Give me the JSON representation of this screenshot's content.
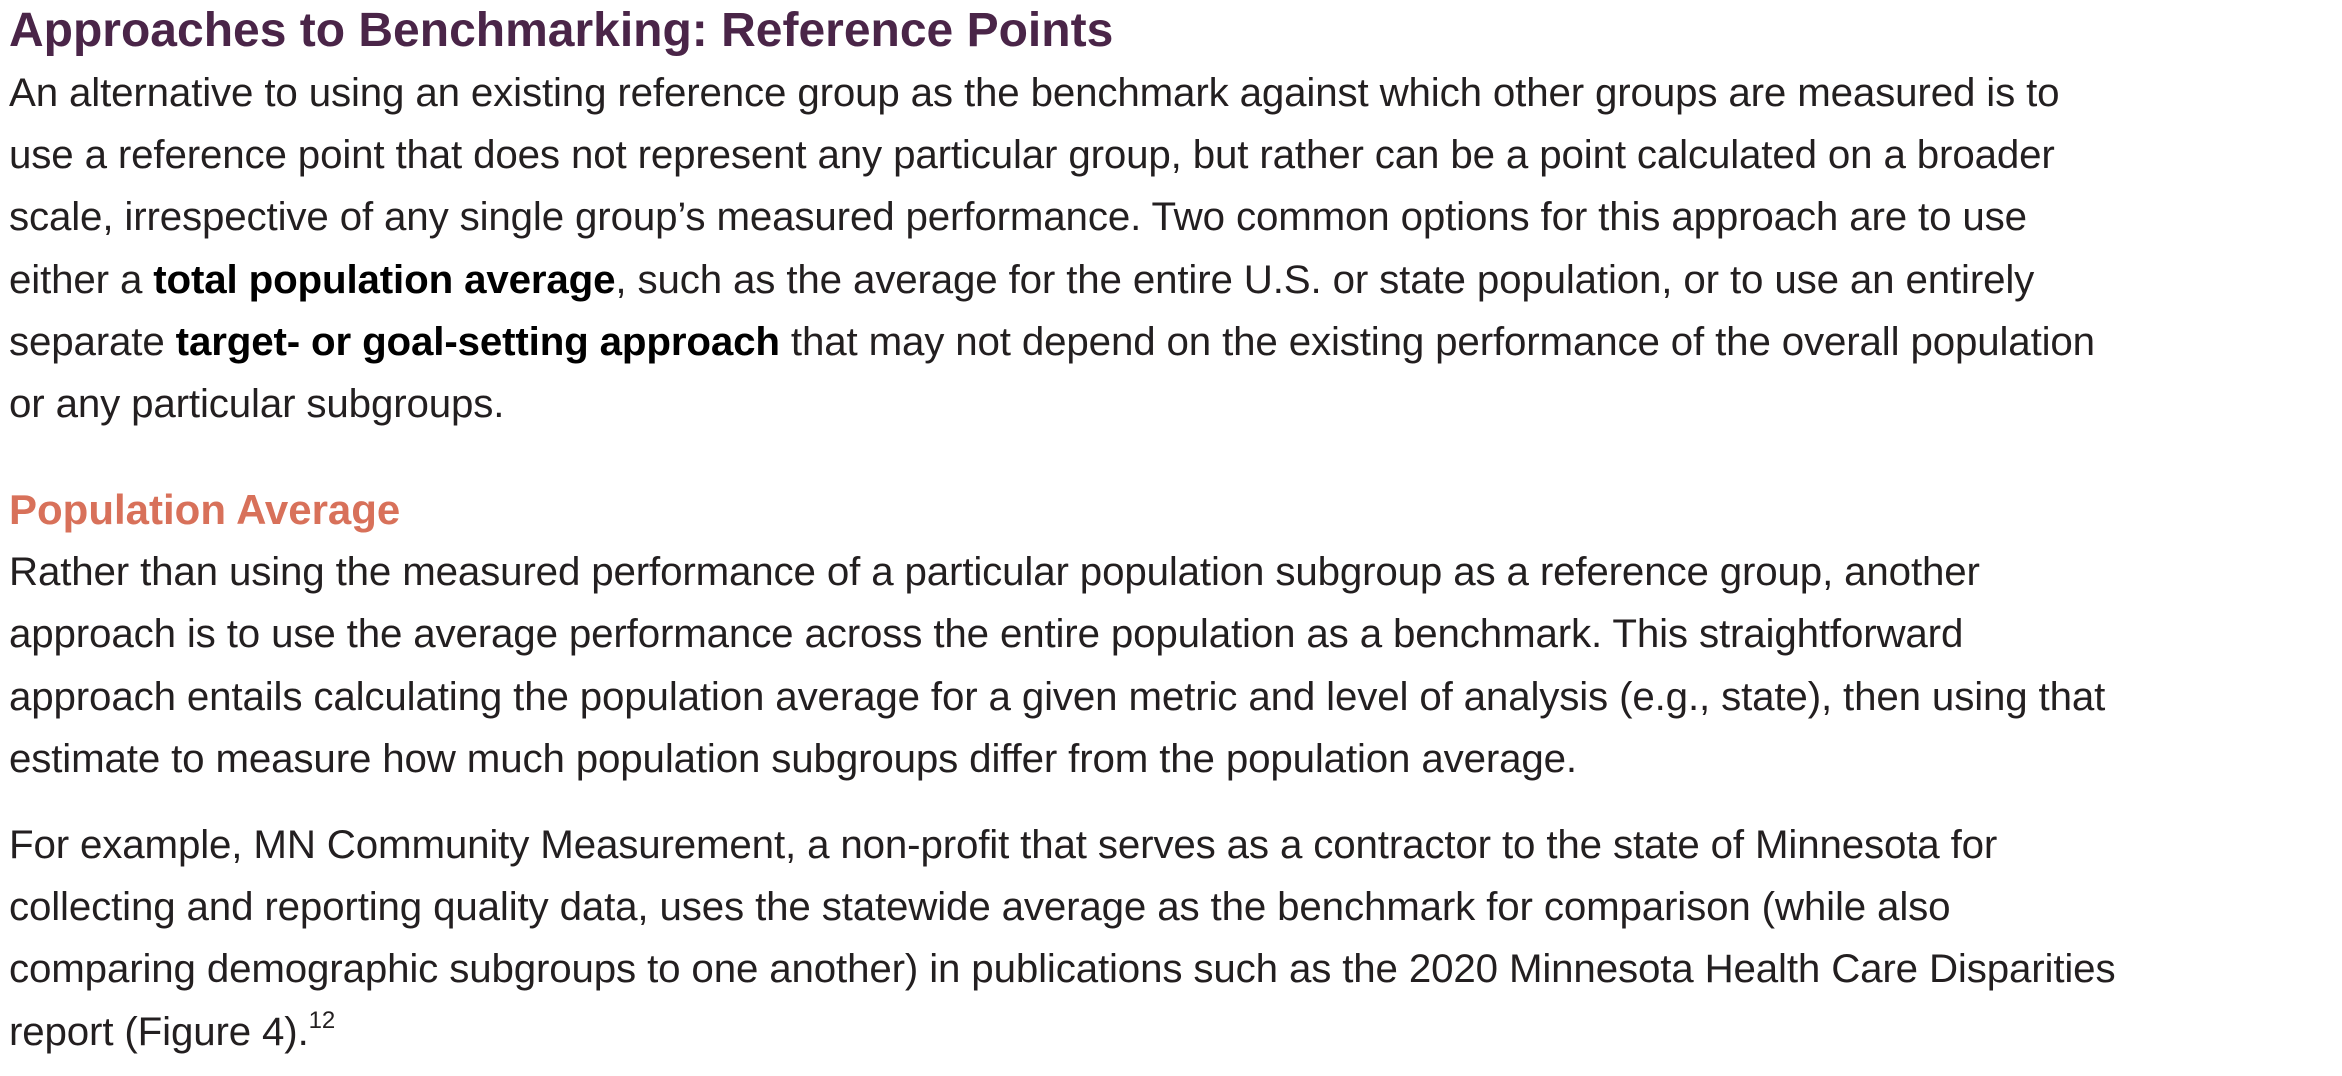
{
  "section": {
    "title": "Approaches to Benchmarking: Reference Points",
    "intro_lines": {
      "l1": "An alternative to using an existing reference group as the benchmark against which other groups are measured is to",
      "l2": "use a reference point that does not represent any particular group, but rather can be a point calculated on a broader",
      "l3": "scale, irrespective of any single group’s measured performance. Two common options for this approach are to use",
      "l4_pre": "either a ",
      "l4_bold": "total population average",
      "l4_post": ", such as the average for the entire U.S. or state population, or to use an entirely",
      "l5_pre": "separate ",
      "l5_bold": "target- or goal-setting approach",
      "l5_post": " that may not depend on the existing performance of the overall population",
      "l6": "or any particular subgroups."
    }
  },
  "subsection": {
    "title": "Population Average",
    "para1_lines": {
      "l1": "Rather than using the measured performance of a particular population subgroup as a reference group, another",
      "l2": "approach is to use the average performance across the entire population as a benchmark. This straightforward",
      "l3": "approach entails calculating the population average for a given metric and level of analysis (e.g., state), then using that",
      "l4": "estimate to measure how much population subgroups differ from the population average."
    },
    "para2_lines": {
      "l1": "For example, MN Community Measurement, a non-profit that serves as a contractor to the state of Minnesota for",
      "l2": "collecting and reporting quality data, uses the statewide average as the benchmark for comparison (while also",
      "l3": "comparing demographic subgroups to one another) in publications such as the 2020 Minnesota Health Care Disparities",
      "l4": "report (Figure 4).",
      "footnote_ref": "12"
    }
  }
}
